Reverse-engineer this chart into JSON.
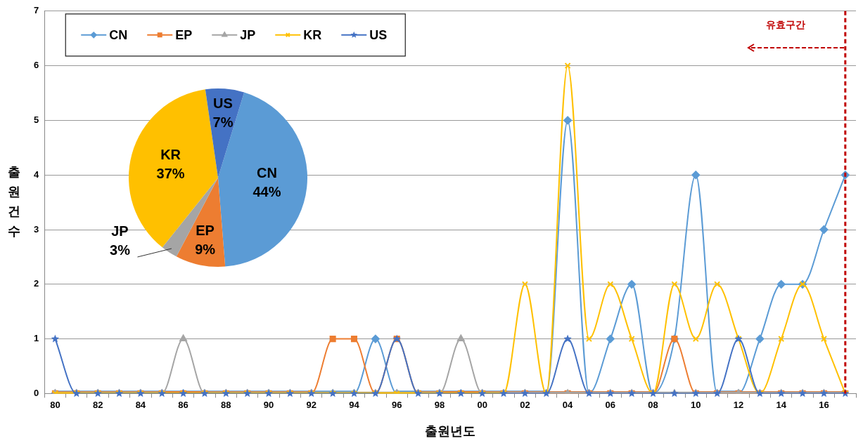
{
  "chart_data": [
    {
      "type": "line",
      "xlabel": "출원년도",
      "ylabel": "출원건수",
      "categories": [
        "80",
        null,
        "82",
        null,
        "84",
        null,
        "86",
        null,
        "88",
        null,
        "90",
        null,
        "92",
        null,
        "94",
        null,
        "96",
        null,
        "98",
        null,
        "00",
        null,
        "02",
        null,
        "04",
        null,
        "06",
        null,
        "08",
        null,
        "10",
        null,
        "12",
        null,
        "14",
        null,
        "16",
        null
      ],
      "series": [
        {
          "name": "CN",
          "color": "#5b9bd5",
          "marker": "diamond",
          "values": [
            0,
            0,
            0,
            0,
            0,
            0,
            0,
            0,
            0,
            0,
            0,
            0,
            0,
            0,
            0,
            1,
            0,
            0,
            0,
            0,
            0,
            0,
            0,
            0,
            5,
            0,
            1,
            2,
            0,
            1,
            4,
            0,
            0,
            1,
            2,
            2,
            3,
            4
          ]
        },
        {
          "name": "EP",
          "color": "#ed7d31",
          "marker": "square",
          "values": [
            0,
            0,
            0,
            0,
            0,
            0,
            0,
            0,
            0,
            0,
            0,
            0,
            0,
            1,
            1,
            0,
            1,
            0,
            0,
            0,
            0,
            0,
            0,
            0,
            0,
            0,
            0,
            0,
            0,
            1,
            0,
            0,
            0,
            0,
            0,
            0,
            0,
            0
          ]
        },
        {
          "name": "JP",
          "color": "#a5a5a5",
          "marker": "triangle",
          "values": [
            0,
            0,
            0,
            0,
            0,
            0,
            1,
            0,
            0,
            0,
            0,
            0,
            0,
            0,
            0,
            0,
            0,
            0,
            0,
            1,
            0,
            0,
            0,
            0,
            0,
            0,
            0,
            0,
            0,
            0,
            0,
            0,
            0,
            0,
            0,
            0,
            0,
            0
          ]
        },
        {
          "name": "KR",
          "color": "#ffc000",
          "marker": "cross",
          "values": [
            0,
            0,
            0,
            0,
            0,
            0,
            0,
            0,
            0,
            0,
            0,
            0,
            0,
            0,
            0,
            0,
            0,
            0,
            0,
            0,
            0,
            0,
            2,
            0,
            6,
            1,
            2,
            1,
            0,
            2,
            1,
            2,
            1,
            0,
            1,
            2,
            1,
            0
          ]
        },
        {
          "name": "US",
          "color": "#4472c4",
          "marker": "star",
          "values": [
            1,
            0,
            0,
            0,
            0,
            0,
            0,
            0,
            0,
            0,
            0,
            0,
            0,
            0,
            0,
            0,
            1,
            0,
            0,
            0,
            0,
            0,
            0,
            0,
            1,
            0,
            0,
            0,
            0,
            0,
            0,
            0,
            1,
            0,
            0,
            0,
            0,
            0
          ]
        }
      ],
      "ylim": [
        0,
        7
      ],
      "yticks": [
        0,
        1,
        2,
        3,
        4,
        5,
        6,
        7
      ],
      "grid": "y",
      "legend": "top left",
      "ref_lines": [
        {
          "axis": "x",
          "label": "유효구간",
          "color": "#c00000",
          "line_style": "dashed"
        }
      ]
    },
    {
      "type": "pie",
      "categories": [
        "CN",
        "EP",
        "JP",
        "KR",
        "US"
      ],
      "values": [
        44,
        9,
        3,
        37,
        7
      ],
      "colors": [
        "#5b9bd5",
        "#ed7d31",
        "#a5a5a5",
        "#ffc000",
        "#4472c4"
      ],
      "value_labels": [
        "44%",
        "9%",
        "3%",
        "37%",
        "7%"
      ]
    }
  ]
}
